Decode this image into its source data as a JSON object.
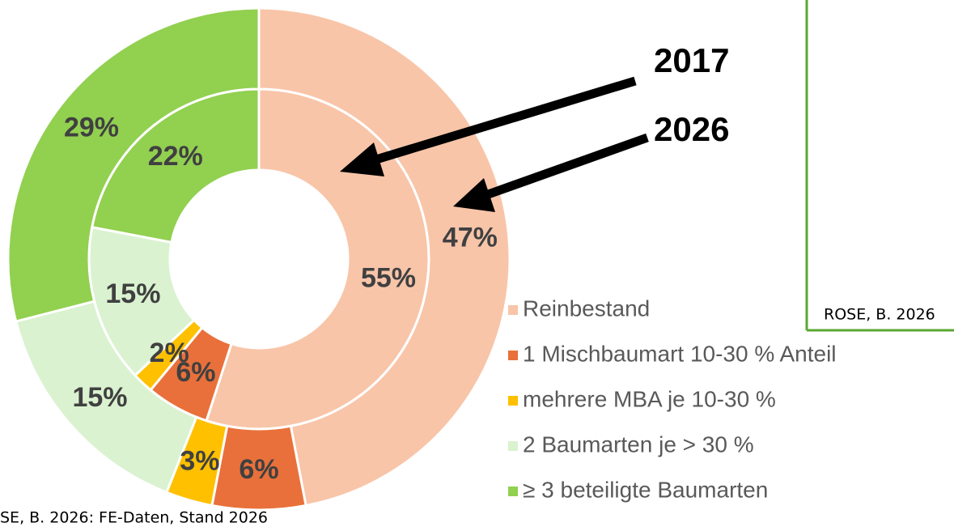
{
  "chart_data": {
    "type": "donut",
    "categories": [
      "Reinbestand",
      "1 Mischbaumart 10-30 % Anteil",
      "mehrere MBA je 10-30 %",
      "2 Baumarten je > 30 %",
      "≥ 3 beteiligte Baumarten"
    ],
    "colors": [
      "#f8c5a9",
      "#e9703a",
      "#ffc000",
      "#daf2d0",
      "#92d050"
    ],
    "series": [
      {
        "name": "2017",
        "values": [
          55,
          6,
          2,
          15,
          22
        ],
        "value_labels": [
          "55%",
          "6%",
          "2%",
          "15%",
          "22%"
        ]
      },
      {
        "name": "2026",
        "values": [
          47,
          6,
          3,
          15,
          29
        ],
        "value_labels": [
          "47%",
          "6%",
          "3%",
          "15%",
          "29%"
        ]
      }
    ],
    "source": "SE, B. 2026: FE-Daten, Stand 2026",
    "inset_source": "ROSE, B. 2026"
  }
}
